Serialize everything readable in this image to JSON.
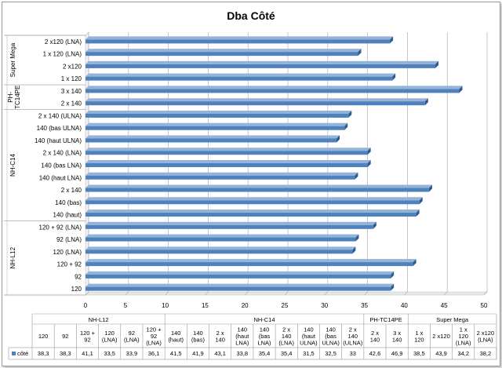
{
  "chart_data": {
    "type": "bar",
    "orientation": "horizontal",
    "title": "Dba Côté",
    "xlim": [
      0,
      50
    ],
    "xticks": [
      0,
      5,
      10,
      15,
      20,
      25,
      30,
      35,
      40,
      45,
      50
    ],
    "grid": true,
    "series": [
      {
        "name": "côté",
        "color": "#4f81bd",
        "groups": [
          {
            "name": "NH-L12",
            "categories": [
              "120",
              "92",
              "120 + 92",
              "120 (LNA)",
              "92 (LNA)",
              "120 + 92 (LNA)"
            ],
            "table_labels": [
              "120",
              "92",
              "120 + 92",
              "120 (LNA)",
              "92 (LNA)",
              "120 + 92 (LNA)"
            ],
            "values": [
              38.3,
              38.3,
              41.1,
              33.5,
              33.9,
              36.1
            ],
            "value_labels": [
              "38,3",
              "38,3",
              "41,1",
              "33,5",
              "33,9",
              "36,1"
            ]
          },
          {
            "name": "NH-C14",
            "categories": [
              "140 (haut)",
              "140 (bas)",
              "2 x 140",
              "140 (haut LNA)",
              "140 (bas LNA)",
              "2 x 140 (LNA)",
              "140 (haut ULNA)",
              "140 (bas ULNA)",
              "2 x 140 (ULNA)"
            ],
            "table_labels": [
              "140 (haut)",
              "140 (bas)",
              "2 x 140",
              "140 (haut LNA)",
              "140 (bas LNA)",
              "2 x 140 (LNA)",
              "140 (haut ULNA)",
              "140 (bas ULNA)",
              "2 x 140 (ULNA)"
            ],
            "values": [
              41.5,
              41.9,
              43.1,
              33.8,
              35.4,
              35.4,
              31.5,
              32.5,
              33
            ],
            "value_labels": [
              "41,5",
              "41,9",
              "43,1",
              "33,8",
              "35,4",
              "35,4",
              "31,5",
              "32,5",
              "33"
            ]
          },
          {
            "name": "PH-TC14PE",
            "categories": [
              "2 x 140",
              "3 x 140"
            ],
            "table_labels": [
              "2 x 140",
              "3 x 140"
            ],
            "values": [
              42.6,
              46.9
            ],
            "value_labels": [
              "42,6",
              "46,9"
            ]
          },
          {
            "name": "Super Mega",
            "categories": [
              "1 x 120",
              "2 x120",
              "1 x 120 (LNA)",
              "2 x120 (LNA)"
            ],
            "table_labels": [
              "1 x 120",
              "2 x120",
              "1 x 120 (LNA)",
              "2 x120 (LNA)"
            ],
            "values": [
              38.5,
              43.9,
              34.2,
              38.2
            ],
            "value_labels": [
              "38,5",
              "43,9",
              "34,2",
              "38,2"
            ]
          }
        ]
      }
    ]
  }
}
